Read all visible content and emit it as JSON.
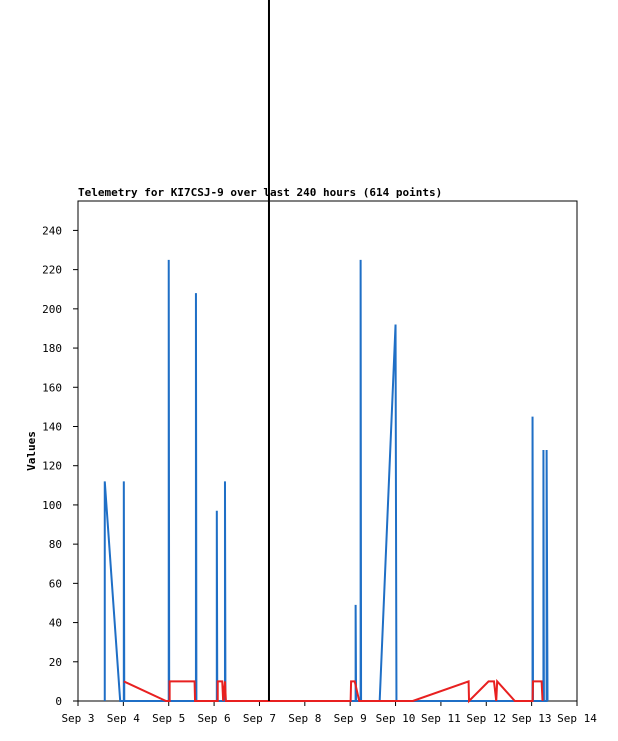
{
  "chart_data": {
    "type": "line",
    "title": "Telemetry for KI7CSJ-9 over last 240 hours (614 points)",
    "y_label": "Values",
    "xlim": [
      3,
      14
    ],
    "xticks": [
      {
        "value": 3,
        "label": "Sep 3"
      },
      {
        "value": 4,
        "label": "Sep 4"
      },
      {
        "value": 5,
        "label": "Sep 5"
      },
      {
        "value": 6,
        "label": "Sep 6"
      },
      {
        "value": 7,
        "label": "Sep 7"
      },
      {
        "value": 8,
        "label": "Sep 8"
      },
      {
        "value": 9,
        "label": "Sep 9"
      },
      {
        "value": 10,
        "label": "Sep 10"
      },
      {
        "value": 11,
        "label": "Sep 11"
      },
      {
        "value": 12,
        "label": "Sep 12"
      },
      {
        "value": 13,
        "label": "Sep 13"
      },
      {
        "value": 14,
        "label": "Sep 14"
      }
    ],
    "ylim": [
      0,
      255
    ],
    "yticks": [
      0,
      20,
      40,
      60,
      80,
      100,
      120,
      140,
      160,
      180,
      200,
      220,
      240
    ],
    "marker_x": 7.21,
    "marker_color": "#000000",
    "series": [
      {
        "color": "#1f6fc6",
        "x": [
          3.59,
          3.59,
          3.93,
          4.01,
          4.01,
          4.02,
          5.0,
          5.0,
          5.01,
          5.6,
          5.6,
          5.61,
          6.06,
          6.06,
          6.07,
          6.24,
          6.24,
          6.25,
          9.12,
          9.12,
          9.13,
          9.23,
          9.23,
          9.24,
          9.65,
          10.0,
          10.02,
          13.02,
          13.02,
          13.03,
          13.26,
          13.26,
          13.27,
          13.33,
          13.33,
          13.35
        ],
        "values": [
          0,
          112,
          0,
          0,
          112,
          0,
          0,
          225,
          0,
          0,
          208,
          0,
          0,
          97,
          0,
          0,
          112,
          0,
          0,
          49,
          0,
          0,
          225,
          0,
          0,
          192,
          0,
          0,
          145,
          0,
          0,
          128,
          0,
          0,
          128,
          0
        ]
      },
      {
        "color": "#e82020",
        "x": [
          4.01,
          4.94,
          5.02,
          5.02,
          5.57,
          5.58,
          6.08,
          6.08,
          6.18,
          6.2,
          6.24,
          6.26,
          9.01,
          9.02,
          9.1,
          9.2,
          10.38,
          11.61,
          11.62,
          12.05,
          12.17,
          12.22,
          12.24,
          12.63,
          13.02,
          13.03,
          13.22,
          13.24
        ],
        "values": [
          10,
          0,
          0,
          10,
          10,
          0,
          0,
          10,
          10,
          0,
          10,
          0,
          0,
          10,
          10,
          0,
          0,
          10,
          0,
          10,
          10,
          0,
          10,
          0,
          0,
          10,
          10,
          0
        ]
      }
    ]
  }
}
